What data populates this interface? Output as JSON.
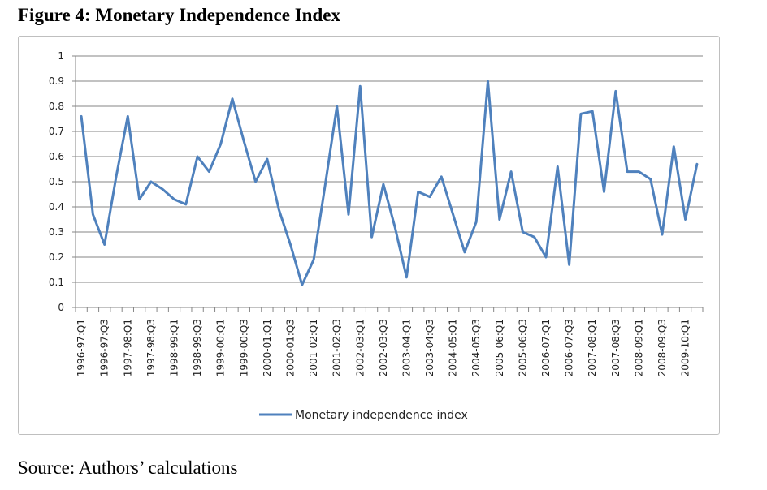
{
  "figure_title": "Figure 4: Monetary Independence Index",
  "source_note": "Source: Authors’ calculations",
  "colors": {
    "series_line": "#4f81bd",
    "grid": "#868686",
    "axis": "#868686"
  },
  "chart_data": {
    "type": "line",
    "title": "",
    "xlabel": "",
    "ylabel": "",
    "ylim": [
      0,
      1
    ],
    "yticks": [
      "0",
      "0.1",
      "0.2",
      "0.3",
      "0.4",
      "0.5",
      "0.6",
      "0.7",
      "0.8",
      "0.9",
      "1"
    ],
    "grid": true,
    "legend_position": "bottom",
    "x_tick_labels": [
      "1996-97:Q1",
      "1996-97:Q3",
      "1997-98:Q1",
      "1997-98:Q3",
      "1998-99:Q1",
      "1998-99:Q3",
      "1999-00:Q1",
      "1999-00:Q3",
      "2000-01:Q1",
      "2000-01:Q3",
      "2001-02:Q1",
      "2001-02:Q3",
      "2002-03:Q1",
      "2002-03:Q3",
      "2003-04:Q1",
      "2003-04:Q3",
      "2004-05:Q1",
      "2004-05:Q3",
      "2005-06:Q1",
      "2005-06:Q3",
      "2006-07:Q1",
      "2006-07:Q3",
      "2007-08:Q1",
      "2007-08:Q3",
      "2008-09:Q1",
      "2008-09:Q3",
      "2009-10:Q1"
    ],
    "x_tick_every": 2,
    "series": [
      {
        "name": "Monetary independence index",
        "values": [
          0.76,
          0.37,
          0.25,
          0.52,
          0.76,
          0.43,
          0.5,
          0.47,
          0.43,
          0.41,
          0.6,
          0.54,
          0.65,
          0.83,
          0.66,
          0.5,
          0.59,
          0.39,
          0.25,
          0.09,
          0.19,
          0.49,
          0.8,
          0.37,
          0.88,
          0.28,
          0.49,
          0.32,
          0.12,
          0.46,
          0.44,
          0.52,
          0.37,
          0.22,
          0.34,
          0.9,
          0.35,
          0.54,
          0.3,
          0.28,
          0.2,
          0.56,
          0.17,
          0.77,
          0.78,
          0.46,
          0.86,
          0.54,
          0.54,
          0.51,
          0.29,
          0.64,
          0.35,
          0.57
        ]
      }
    ]
  }
}
